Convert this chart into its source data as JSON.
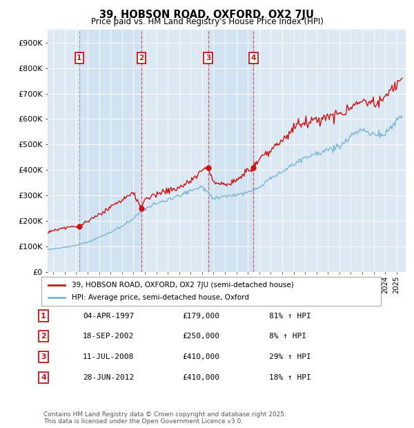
{
  "title": "39, HOBSON ROAD, OXFORD, OX2 7JU",
  "subtitle": "Price paid vs. HM Land Registry's House Price Index (HPI)",
  "transactions": [
    {
      "label": "1",
      "date": "04-APR-1997",
      "price": 179000,
      "pct": "81% ↑ HPI",
      "x_year": 1997.27
    },
    {
      "label": "2",
      "date": "18-SEP-2002",
      "price": 250000,
      "pct": "8% ↑ HPI",
      "x_year": 2002.71
    },
    {
      "label": "3",
      "date": "11-JUL-2008",
      "price": 410000,
      "pct": "29% ↑ HPI",
      "x_year": 2008.53
    },
    {
      "label": "4",
      "date": "28-JUN-2012",
      "price": 410000,
      "pct": "18% ↑ HPI",
      "x_year": 2012.49
    }
  ],
  "ylabel_ticks": [
    0,
    100000,
    200000,
    300000,
    400000,
    500000,
    600000,
    700000,
    800000,
    900000
  ],
  "ylabel_labels": [
    "£0",
    "£100K",
    "£200K",
    "£300K",
    "£400K",
    "£500K",
    "£600K",
    "£700K",
    "£800K",
    "£900K"
  ],
  "xmin": 1994.5,
  "xmax": 2025.8,
  "ymin": 0,
  "ymax": 950000,
  "hpi_color": "#7ab5d8",
  "price_color": "#cc1111",
  "dashed_color_red": "#dd4444",
  "dashed_color_gray": "#999999",
  "background_chart": "#dce9f5",
  "legend_label_red": "39, HOBSON ROAD, OXFORD, OX2 7JU (semi-detached house)",
  "legend_label_blue": "HPI: Average price, semi-detached house, Oxford",
  "footer": "Contains HM Land Registry data © Crown copyright and database right 2025.\nThis data is licensed under the Open Government Licence v3.0."
}
